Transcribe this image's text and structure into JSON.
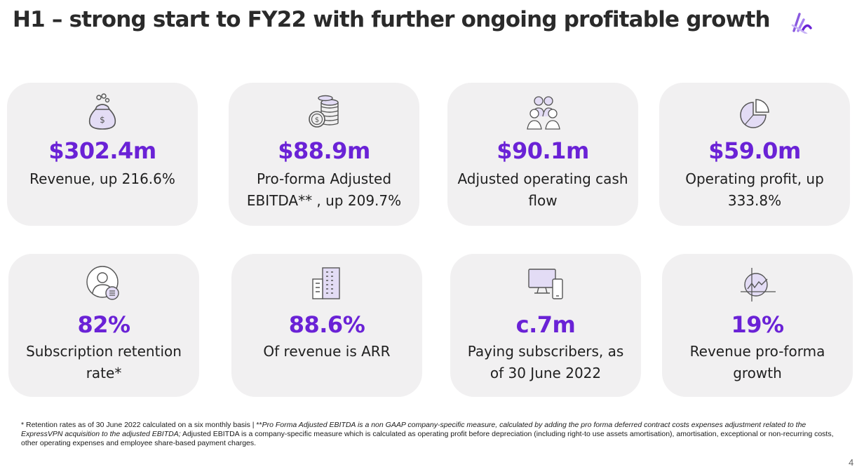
{
  "title": "H1 – strong start to FY22 with further ongoing profitable growth",
  "brand": {
    "accent": "#6a22d6",
    "icon_fill": "#e3dcf5",
    "card_bg": "#f1f0f1"
  },
  "cards": [
    {
      "icon": "money-bag-icon",
      "value": "$302.4m",
      "label": "Revenue, up 216.6%"
    },
    {
      "icon": "coin-stack-icon",
      "value": "$88.9m",
      "label": "Pro-forma Adjusted EBITDA** , up 209.7%"
    },
    {
      "icon": "people-group-icon",
      "value": "$90.1m",
      "label": "Adjusted operating cash flow"
    },
    {
      "icon": "pie-chart-icon",
      "value": "$59.0m",
      "label": "Operating profit, up 333.8%"
    },
    {
      "icon": "user-list-icon",
      "value": "82%",
      "label": "Subscription retention rate*"
    },
    {
      "icon": "office-building-icon",
      "value": "88.6%",
      "label": "Of revenue is ARR"
    },
    {
      "icon": "devices-icon",
      "value": "c.7m",
      "label": "Paying subscribers, as of 30 June 2022"
    },
    {
      "icon": "growth-chart-icon",
      "value": "19%",
      "label": "Revenue pro-forma growth"
    }
  ],
  "footnote": {
    "part1": "* Retention rates as of 30 June 2022 calculated on a six monthly basis | **",
    "part2_italic": "Pro Forma Adjusted EBITDA is a non GAAP company-specific measure, calculated by adding the pro forma deferred contract costs expenses adjustment related to the ExpressVPN acquisition to the adjusted EBITDA;",
    "part3": " Adjusted EBITDA is a company-specific measure which is calculated as operating profit before depreciation (including right-to use assets amortisation), amortisation, exceptional or non-recurring costs, other operating expenses and employee share-based payment charges."
  },
  "page_number": "4"
}
